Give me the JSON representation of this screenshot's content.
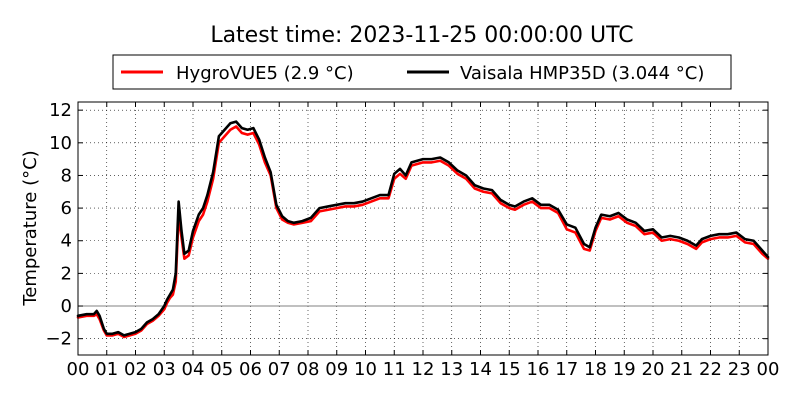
{
  "chart_data": {
    "type": "line",
    "title": "Latest time: 2023-11-25 00:00:00 UTC",
    "xlabel": "",
    "ylabel": "Temperature (°C)",
    "xlim": [
      0,
      24
    ],
    "ylim": [
      -3,
      12.5
    ],
    "grid": true,
    "grid_style": "dotted",
    "legend_position": "top-center",
    "x_ticks": [
      0,
      1,
      2,
      3,
      4,
      5,
      6,
      7,
      8,
      9,
      10,
      11,
      12,
      13,
      14,
      15,
      16,
      17,
      18,
      19,
      20,
      21,
      22,
      23,
      24
    ],
    "x_tick_labels": [
      "00",
      "01",
      "02",
      "03",
      "04",
      "05",
      "06",
      "07",
      "08",
      "09",
      "10",
      "11",
      "12",
      "13",
      "14",
      "15",
      "16",
      "17",
      "18",
      "19",
      "20",
      "21",
      "22",
      "23",
      "00"
    ],
    "y_ticks": [
      -2,
      0,
      2,
      4,
      6,
      8,
      10,
      12
    ],
    "y_tick_labels": [
      "−2",
      "0",
      "2",
      "4",
      "6",
      "8",
      "10",
      "12"
    ],
    "reference_line_y": 0,
    "series": [
      {
        "name": "HygroVUE5 (2.9 °C)",
        "color": "#ff0000",
        "x": [
          0.0,
          0.3,
          0.55,
          0.65,
          0.75,
          0.9,
          1.0,
          1.2,
          1.4,
          1.6,
          1.8,
          2.0,
          2.2,
          2.4,
          2.6,
          2.8,
          3.0,
          3.1,
          3.2,
          3.3,
          3.4,
          3.5,
          3.6,
          3.7,
          3.85,
          4.0,
          4.2,
          4.35,
          4.5,
          4.7,
          4.9,
          5.1,
          5.3,
          5.5,
          5.7,
          5.9,
          6.1,
          6.3,
          6.5,
          6.7,
          6.9,
          7.1,
          7.3,
          7.5,
          7.8,
          8.1,
          8.4,
          8.7,
          9.0,
          9.3,
          9.6,
          9.9,
          10.2,
          10.5,
          10.8,
          11.0,
          11.2,
          11.4,
          11.6,
          11.8,
          12.0,
          12.3,
          12.6,
          12.9,
          13.2,
          13.5,
          13.8,
          14.1,
          14.4,
          14.7,
          15.0,
          15.2,
          15.5,
          15.8,
          16.1,
          16.4,
          16.7,
          17.0,
          17.3,
          17.6,
          17.8,
          18.0,
          18.2,
          18.5,
          18.8,
          19.1,
          19.4,
          19.7,
          20.0,
          20.3,
          20.6,
          20.9,
          21.2,
          21.5,
          21.7,
          22.0,
          22.3,
          22.6,
          22.9,
          23.2,
          23.5,
          23.8,
          24.0
        ],
        "values": [
          -0.7,
          -0.6,
          -0.6,
          -0.5,
          -0.8,
          -1.5,
          -1.8,
          -1.8,
          -1.7,
          -1.9,
          -1.8,
          -1.7,
          -1.5,
          -1.1,
          -0.9,
          -0.6,
          -0.2,
          0.2,
          0.5,
          0.7,
          1.5,
          5.6,
          4.2,
          2.9,
          3.1,
          4.2,
          5.2,
          5.6,
          6.4,
          7.8,
          10.0,
          10.4,
          10.8,
          11.0,
          10.6,
          10.5,
          10.6,
          9.9,
          8.8,
          8.0,
          6.0,
          5.3,
          5.1,
          5.0,
          5.1,
          5.2,
          5.8,
          5.9,
          6.0,
          6.1,
          6.1,
          6.2,
          6.4,
          6.6,
          6.6,
          7.8,
          8.1,
          7.8,
          8.6,
          8.7,
          8.8,
          8.8,
          8.9,
          8.6,
          8.1,
          7.8,
          7.2,
          7.0,
          6.9,
          6.3,
          6.0,
          5.9,
          6.2,
          6.4,
          6.0,
          6.0,
          5.7,
          4.7,
          4.5,
          3.5,
          3.4,
          4.6,
          5.4,
          5.3,
          5.5,
          5.1,
          4.9,
          4.4,
          4.5,
          4.0,
          4.1,
          4.0,
          3.8,
          3.5,
          3.9,
          4.1,
          4.2,
          4.2,
          4.3,
          3.9,
          3.8,
          3.2,
          2.9
        ]
      },
      {
        "name": "Vaisala HMP35D (3.044 °C)",
        "color": "#000000",
        "x": [
          0.0,
          0.3,
          0.55,
          0.65,
          0.75,
          0.9,
          1.0,
          1.2,
          1.4,
          1.6,
          1.8,
          2.0,
          2.2,
          2.4,
          2.6,
          2.8,
          3.0,
          3.1,
          3.2,
          3.3,
          3.4,
          3.5,
          3.6,
          3.7,
          3.85,
          4.0,
          4.2,
          4.35,
          4.5,
          4.7,
          4.9,
          5.1,
          5.3,
          5.5,
          5.7,
          5.9,
          6.1,
          6.3,
          6.5,
          6.7,
          6.9,
          7.1,
          7.3,
          7.5,
          7.8,
          8.1,
          8.4,
          8.7,
          9.0,
          9.3,
          9.6,
          9.9,
          10.2,
          10.5,
          10.8,
          11.0,
          11.2,
          11.4,
          11.6,
          11.8,
          12.0,
          12.3,
          12.6,
          12.9,
          13.2,
          13.5,
          13.8,
          14.1,
          14.4,
          14.7,
          15.0,
          15.2,
          15.5,
          15.8,
          16.1,
          16.4,
          16.7,
          17.0,
          17.3,
          17.6,
          17.8,
          18.0,
          18.2,
          18.5,
          18.8,
          19.1,
          19.4,
          19.7,
          20.0,
          20.3,
          20.6,
          20.9,
          21.2,
          21.5,
          21.7,
          22.0,
          22.3,
          22.6,
          22.9,
          23.2,
          23.5,
          23.8,
          24.0
        ],
        "values": [
          -0.6,
          -0.5,
          -0.5,
          -0.3,
          -0.6,
          -1.4,
          -1.7,
          -1.7,
          -1.6,
          -1.8,
          -1.7,
          -1.6,
          -1.4,
          -1.0,
          -0.8,
          -0.5,
          0.0,
          0.4,
          0.7,
          1.0,
          2.0,
          6.4,
          4.6,
          3.2,
          3.4,
          4.6,
          5.6,
          6.0,
          6.8,
          8.2,
          10.4,
          10.8,
          11.2,
          11.3,
          10.9,
          10.8,
          10.9,
          10.2,
          9.1,
          8.2,
          6.2,
          5.5,
          5.2,
          5.1,
          5.2,
          5.4,
          6.0,
          6.1,
          6.2,
          6.3,
          6.3,
          6.4,
          6.6,
          6.8,
          6.8,
          8.1,
          8.4,
          8.0,
          8.8,
          8.9,
          9.0,
          9.0,
          9.1,
          8.8,
          8.3,
          8.0,
          7.4,
          7.2,
          7.1,
          6.5,
          6.2,
          6.1,
          6.4,
          6.6,
          6.2,
          6.2,
          5.9,
          5.0,
          4.8,
          3.8,
          3.6,
          4.8,
          5.6,
          5.5,
          5.7,
          5.3,
          5.1,
          4.6,
          4.7,
          4.2,
          4.3,
          4.2,
          4.0,
          3.7,
          4.1,
          4.3,
          4.4,
          4.4,
          4.5,
          4.1,
          4.0,
          3.4,
          3.0
        ]
      }
    ]
  }
}
